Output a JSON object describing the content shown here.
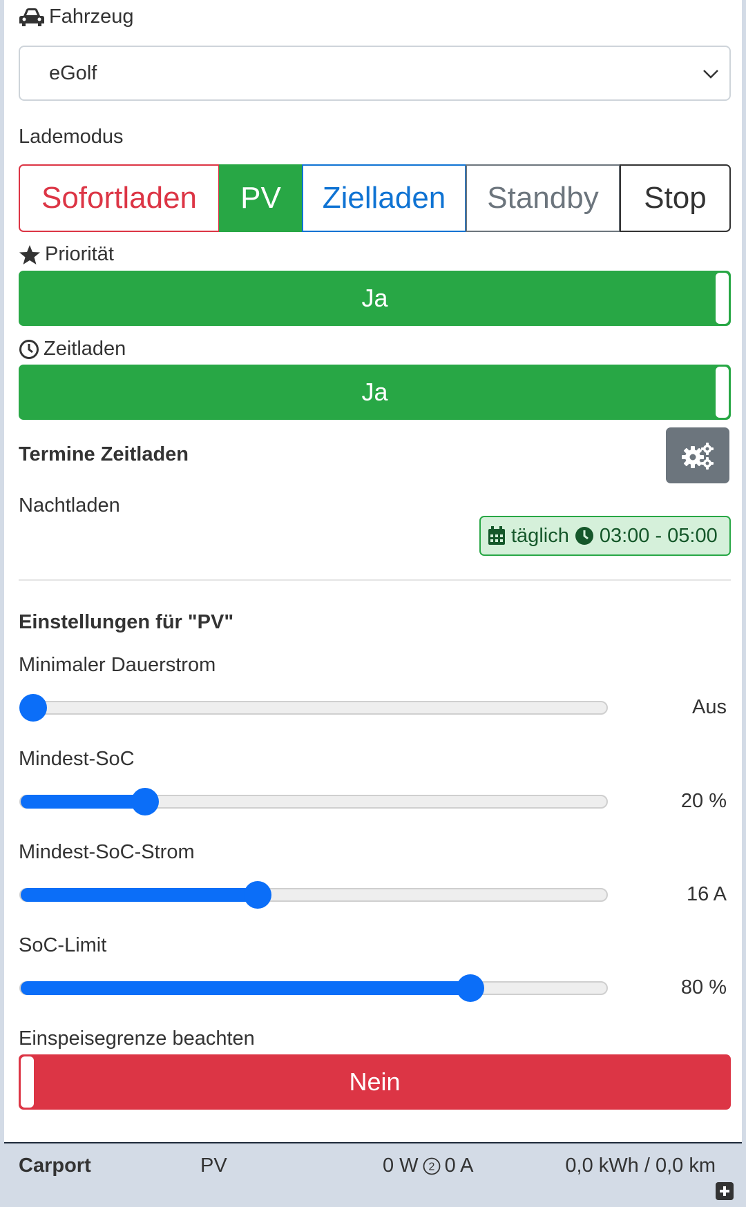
{
  "vehicle": {
    "label": "Fahrzeug",
    "icon": "car-icon",
    "selected": "eGolf"
  },
  "charge_mode": {
    "label": "Lademodus",
    "options": [
      "Sofortladen",
      "PV",
      "Zielladen",
      "Standby",
      "Stop"
    ],
    "active": "PV",
    "colors": {
      "Sofortladen": "#dc3545",
      "PV": "#28a745",
      "Zielladen": "#0f73d3",
      "Standby": "#6c757d",
      "Stop": "#333333"
    }
  },
  "priority": {
    "label": "Priorität",
    "icon": "star-icon",
    "value": "Ja",
    "color": "#28a745"
  },
  "scheduled_charging": {
    "label": "Zeitladen",
    "icon": "clock-icon",
    "value": "Ja",
    "color": "#28a745"
  },
  "schedule": {
    "heading": "Termine Zeitladen",
    "settings_icon": "gears-icon",
    "entries": [
      {
        "name": "Nachtladen",
        "frequency": "täglich",
        "time": "03:00 - 05:00"
      }
    ]
  },
  "pv_settings": {
    "heading": "Einstellungen für \"PV\"",
    "sliders": [
      {
        "label": "Minimaler Dauerstrom",
        "value_text": "Aus",
        "fraction": 0.0
      },
      {
        "label": "Mindest-SoC",
        "value_text": "20 %",
        "fraction": 0.2
      },
      {
        "label": "Mindest-SoC-Strom",
        "value_text": "16 A",
        "fraction": 0.4
      },
      {
        "label": "SoC-Limit",
        "value_text": "80 %",
        "fraction": 0.78
      }
    ],
    "feed_in_limit": {
      "label": "Einspeisegrenze beachten",
      "value": "Nein",
      "color": "#dc3545"
    }
  },
  "footer": {
    "chargepoint": "Carport",
    "mode": "PV",
    "power": "0 W",
    "phases_icon": "circled-two-icon",
    "current": "0 A",
    "energy": "0,0 kWh / 0,0 km",
    "expand_icon": "plus-square-icon"
  }
}
